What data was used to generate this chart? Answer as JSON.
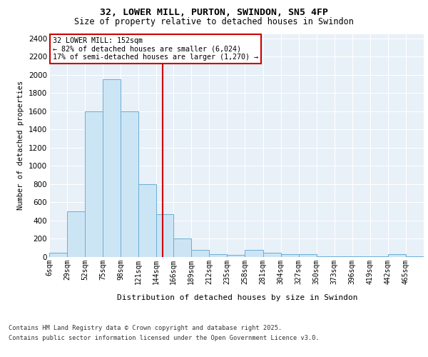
{
  "title_line1": "32, LOWER MILL, PURTON, SWINDON, SN5 4FP",
  "title_line2": "Size of property relative to detached houses in Swindon",
  "xlabel": "Distribution of detached houses by size in Swindon",
  "ylabel": "Number of detached properties",
  "footer_line1": "Contains HM Land Registry data © Crown copyright and database right 2025.",
  "footer_line2": "Contains public sector information licensed under the Open Government Licence v3.0.",
  "annotation_title": "32 LOWER MILL: 152sqm",
  "annotation_line2": "← 82% of detached houses are smaller (6,024)",
  "annotation_line3": "17% of semi-detached houses are larger (1,270) →",
  "vline_x": 152,
  "bar_color": "#cce5f5",
  "bar_edge_color": "#6baed6",
  "vline_color": "#cc0000",
  "annotation_box_edgecolor": "#cc0000",
  "background_color": "#e8f0f8",
  "grid_color": "#ffffff",
  "categories": [
    "6sqm",
    "29sqm",
    "52sqm",
    "75sqm",
    "98sqm",
    "121sqm",
    "144sqm",
    "166sqm",
    "189sqm",
    "212sqm",
    "235sqm",
    "258sqm",
    "281sqm",
    "304sqm",
    "327sqm",
    "350sqm",
    "373sqm",
    "396sqm",
    "419sqm",
    "442sqm",
    "465sqm"
  ],
  "bin_edges": [
    6,
    29,
    52,
    75,
    98,
    121,
    144,
    166,
    189,
    212,
    235,
    258,
    281,
    304,
    327,
    350,
    373,
    396,
    419,
    442,
    465,
    488
  ],
  "bar_heights": [
    50,
    500,
    1600,
    1950,
    1600,
    800,
    470,
    200,
    75,
    30,
    25,
    75,
    50,
    30,
    30,
    10,
    10,
    10,
    10,
    30,
    10
  ],
  "ylim": [
    0,
    2450
  ],
  "yticks": [
    0,
    200,
    400,
    600,
    800,
    1000,
    1200,
    1400,
    1600,
    1800,
    2000,
    2200,
    2400
  ]
}
